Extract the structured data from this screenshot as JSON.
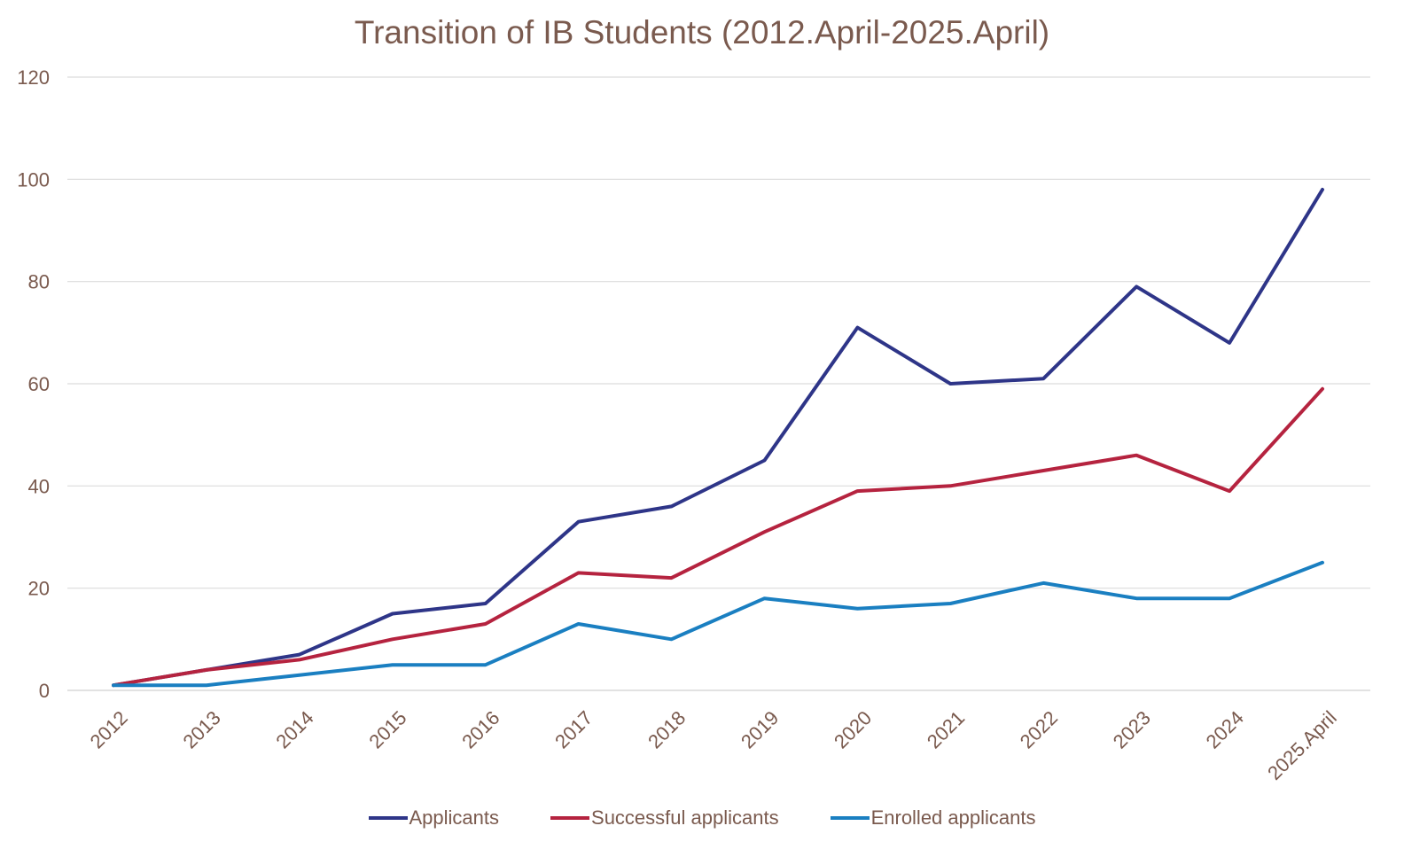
{
  "chart_data": {
    "type": "line",
    "title": "Transition of IB Students (2012.April-2025.April)",
    "categories": [
      "2012",
      "2013",
      "2014",
      "2015",
      "2016",
      "2017",
      "2018",
      "2019",
      "2020",
      "2021",
      "2022",
      "2023",
      "2024",
      "2025.April"
    ],
    "ylim": [
      0,
      120
    ],
    "yticks": [
      0,
      20,
      40,
      60,
      80,
      100,
      120
    ],
    "grid": true,
    "legend_position": "bottom",
    "series": [
      {
        "name": "Applicants",
        "color": "#2e3588",
        "values": [
          1,
          4,
          7,
          15,
          17,
          33,
          36,
          45,
          71,
          60,
          61,
          79,
          68,
          98
        ]
      },
      {
        "name": "Successful applicants",
        "color": "#b5233f",
        "values": [
          1,
          4,
          6,
          10,
          13,
          23,
          22,
          31,
          39,
          40,
          43,
          46,
          39,
          59
        ]
      },
      {
        "name": "Enrolled applicants",
        "color": "#1a7fc1",
        "values": [
          1,
          1,
          3,
          5,
          5,
          13,
          10,
          18,
          16,
          17,
          21,
          18,
          18,
          25
        ]
      }
    ]
  }
}
